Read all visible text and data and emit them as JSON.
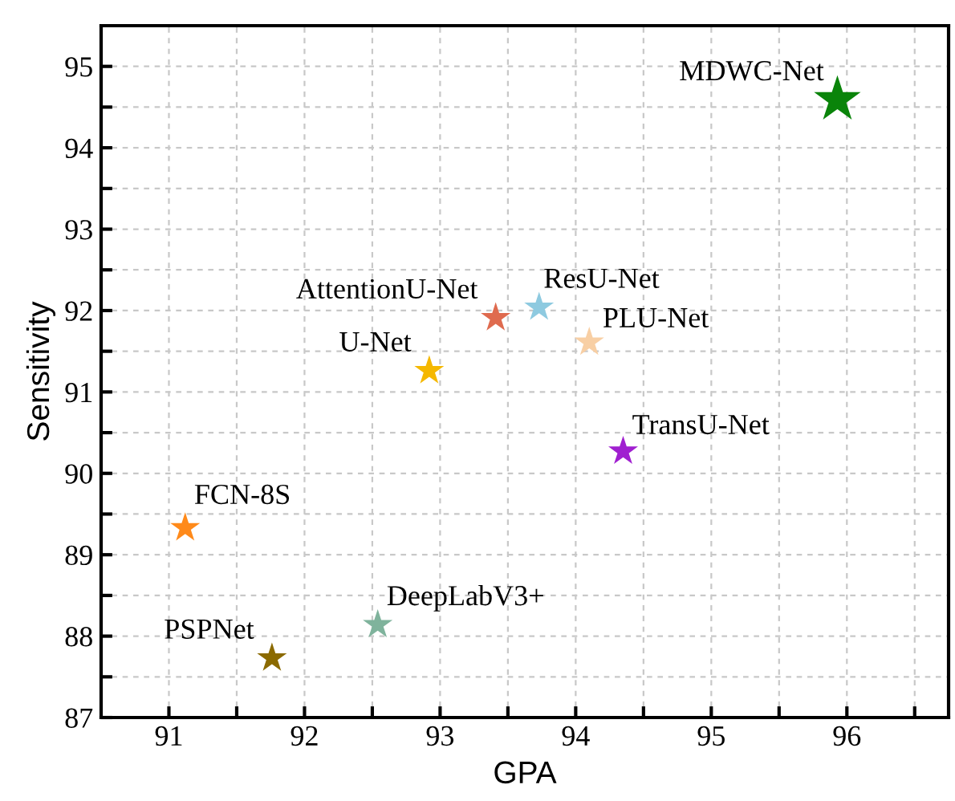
{
  "chart_data": {
    "type": "scatter",
    "xlabel": "GPA",
    "ylabel": "Sensitivity",
    "marker": "star",
    "grid": true,
    "legend": false,
    "xlim": [
      90.5,
      96.75
    ],
    "ylim": [
      87,
      95.5
    ],
    "xticks": [
      91,
      {
        "value": 91.5,
        "label": null
      },
      92,
      {
        "value": 92.5,
        "label": null
      },
      93,
      {
        "value": 93.5,
        "label": null
      },
      94,
      {
        "value": 94.5,
        "label": null
      },
      95,
      {
        "value": 95.5,
        "label": null
      },
      96,
      {
        "value": 96.5,
        "label": null
      }
    ],
    "yticks": [
      87,
      {
        "value": 87.5,
        "label": null
      },
      88,
      {
        "value": 88.5,
        "label": null
      },
      89,
      {
        "value": 89.5,
        "label": null
      },
      90,
      {
        "value": 90.5,
        "label": null
      },
      91,
      {
        "value": 91.5,
        "label": null
      },
      92,
      {
        "value": 92.5,
        "label": null
      },
      93,
      {
        "value": 93.5,
        "label": null
      },
      94,
      {
        "value": 94.5,
        "label": null
      },
      95
    ],
    "series": [
      {
        "name": "MDWC-Net",
        "color": "#0a840a",
        "x": [
          95.93
        ],
        "values": [
          94.59
        ]
      },
      {
        "name": "AttentionU-Net",
        "color": "#df6b4f",
        "x": [
          93.41
        ],
        "values": [
          91.91
        ]
      },
      {
        "name": "ResU-Net",
        "color": "#8ecae0",
        "x": [
          93.73
        ],
        "values": [
          92.04
        ]
      },
      {
        "name": "PLU-Net",
        "color": "#f8cfa4",
        "x": [
          94.1
        ],
        "values": [
          91.61
        ]
      },
      {
        "name": "U-Net",
        "color": "#f5b800",
        "x": [
          92.92
        ],
        "values": [
          91.26
        ]
      },
      {
        "name": "TransU-Net",
        "color": "#a01fd0",
        "x": [
          94.35
        ],
        "values": [
          90.27
        ]
      },
      {
        "name": "FCN-8S",
        "color": "#ff8a1a",
        "x": [
          91.12
        ],
        "values": [
          89.33
        ]
      },
      {
        "name": "DeepLabV3+",
        "color": "#7fb39c",
        "x": [
          92.54
        ],
        "values": [
          88.14
        ]
      },
      {
        "name": "PSPNet",
        "color": "#8b6a00",
        "x": [
          91.76
        ],
        "values": [
          87.73
        ]
      }
    ]
  }
}
